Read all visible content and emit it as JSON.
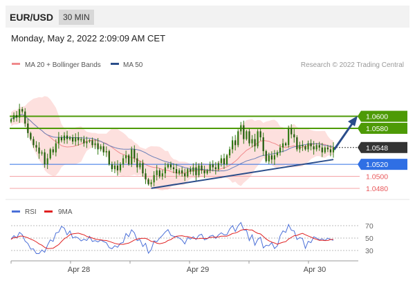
{
  "header": {
    "symbol": "EUR/USD",
    "timeframe": "30 MIN"
  },
  "datetime": "Monday, May 2, 2022 2:09:09 AM CET",
  "legend_main": {
    "bb_label": "MA 20 + Bollinger Bands",
    "ma50_label": "MA 50",
    "credit": "Research © 2022 Trading Central"
  },
  "legend_rsi": {
    "rsi_label": "RSI",
    "ma9_label": "9MA"
  },
  "colors": {
    "green": "#4d9a06",
    "blue": "#2f6fe4",
    "red": "#e8575a",
    "dark": "#333333",
    "trend": "#2a4d8a",
    "bb_fill": "#fde0de",
    "candle": "#2f7a12"
  },
  "chart_data": {
    "type": "candlestick",
    "ylim": [
      1.0465,
      1.0665
    ],
    "x_ticks": [
      "Apr 28",
      "Apr 29",
      "Apr 30"
    ],
    "levels": [
      {
        "value": 1.06,
        "label": "1.0600",
        "kind": "resistance"
      },
      {
        "value": 1.058,
        "label": "1.0580",
        "kind": "resistance"
      },
      {
        "value": 1.0548,
        "label": "1.0548",
        "kind": "current"
      },
      {
        "value": 1.052,
        "label": "1.0520",
        "kind": "pivot"
      },
      {
        "value": 1.05,
        "label": "1.0500",
        "kind": "support"
      },
      {
        "value": 1.048,
        "label": "1.0480",
        "kind": "support"
      }
    ],
    "close": [
      1.0595,
      1.0602,
      1.0598,
      1.0612,
      1.0608,
      1.0588,
      1.0572,
      1.0562,
      1.0552,
      1.0548,
      1.0538,
      1.054,
      1.052,
      1.053,
      1.0545,
      1.054,
      1.0555,
      1.0565,
      1.056,
      1.0568,
      1.0562,
      1.0565,
      1.0558,
      1.0565,
      1.056,
      1.0562,
      1.0555,
      1.0558,
      1.056,
      1.0552,
      1.0555,
      1.0545,
      1.055,
      1.054,
      1.0542,
      1.052,
      1.0512,
      1.0518,
      1.051,
      1.052,
      1.053,
      1.0535,
      1.052,
      1.0545,
      1.053,
      1.0515,
      1.0522,
      1.0505,
      1.0495,
      1.0487,
      1.049,
      1.0502,
      1.051,
      1.05,
      1.0505,
      1.0515,
      1.052,
      1.0515,
      1.0512,
      1.0505,
      1.051,
      1.0505,
      1.05,
      1.0512,
      1.0508,
      1.0515,
      1.0502,
      1.0518,
      1.051,
      1.0505,
      1.051,
      1.052,
      1.0515,
      1.0512,
      1.0522,
      1.053,
      1.052,
      1.0535,
      1.0545,
      1.056,
      1.0552,
      1.0575,
      1.0585,
      1.0562,
      1.0575,
      1.0555,
      1.0562,
      1.055,
      1.0575,
      1.0565,
      1.0542,
      1.0525,
      1.0535,
      1.0528,
      1.0535,
      1.054,
      1.0548,
      1.0555,
      1.0552,
      1.058,
      1.057,
      1.0565,
      1.0545,
      1.0552,
      1.055,
      1.0545,
      1.0555,
      1.055,
      1.0545,
      1.0552,
      1.0548,
      1.054,
      1.0548,
      1.0545,
      1.054,
      1.0548
    ],
    "rsi": {
      "levels": [
        70,
        50,
        30
      ],
      "ylim": [
        20,
        80
      ]
    }
  }
}
